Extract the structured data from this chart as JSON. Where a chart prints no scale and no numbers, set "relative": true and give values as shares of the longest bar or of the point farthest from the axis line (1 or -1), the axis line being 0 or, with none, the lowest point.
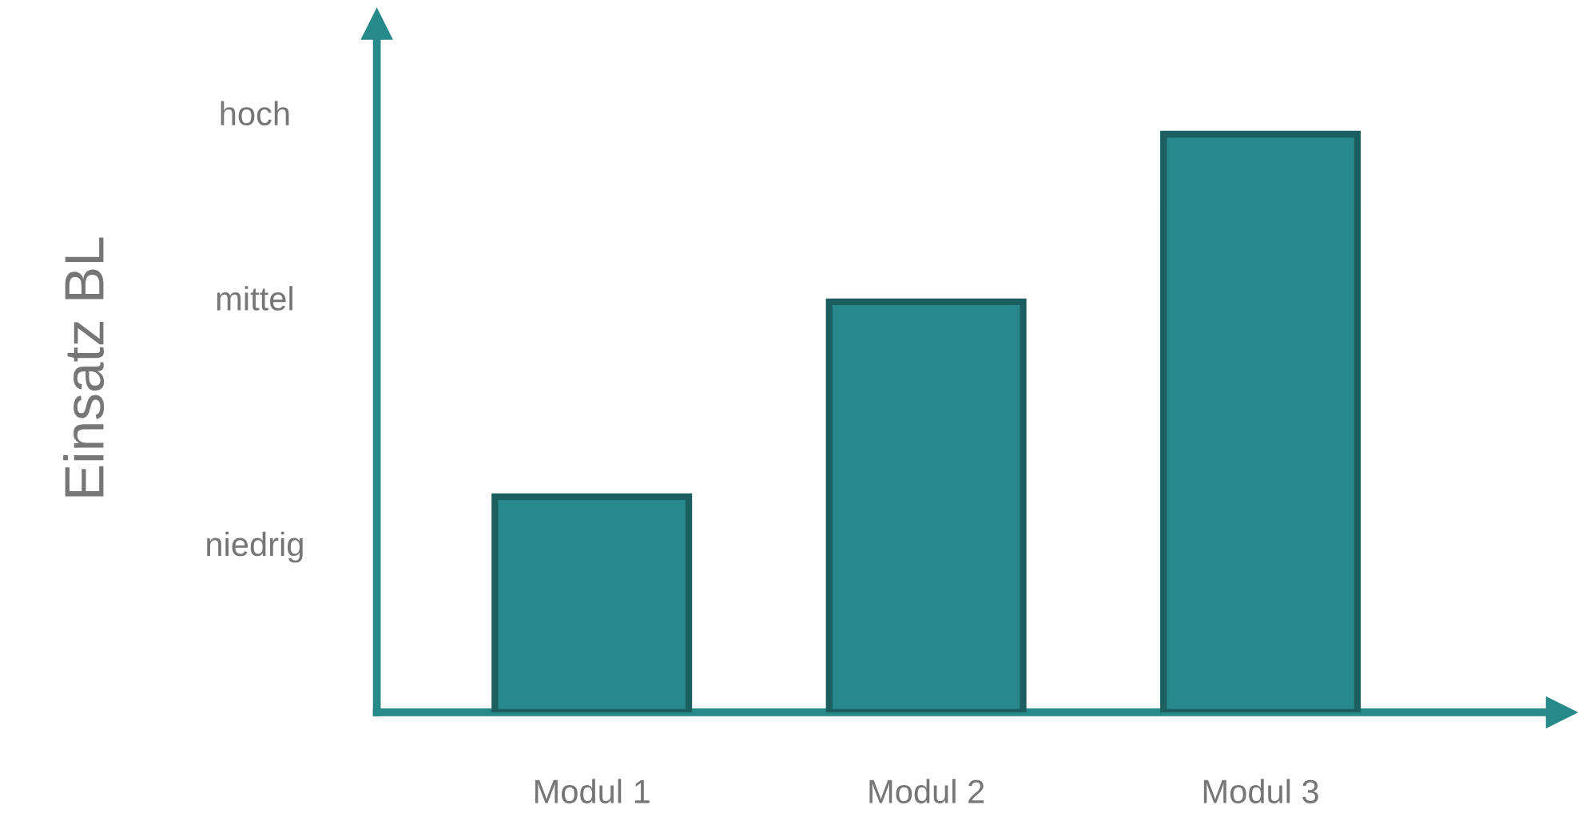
{
  "chart_data": {
    "type": "bar",
    "relative": true,
    "ylabel": "Einsatz BL",
    "categories": [
      "Modul 1",
      "Modul 2",
      "Modul 3"
    ],
    "values": [
      0.373,
      0.71,
      1
    ],
    "color": "#27898b",
    "annotations": [
      "hoch",
      "mittel",
      "niedrig"
    ]
  }
}
